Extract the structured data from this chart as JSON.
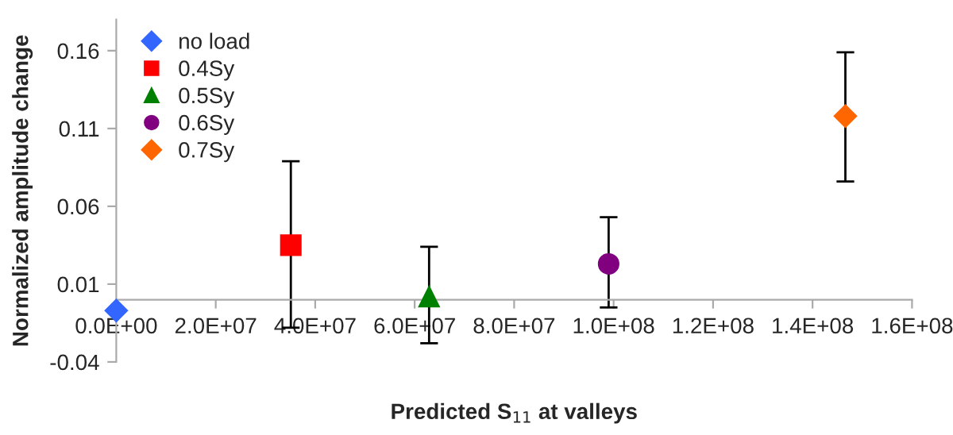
{
  "chart_data": {
    "type": "scatter",
    "xlabel": "Predicted S$_{11}$ at valleys",
    "ylabel": "Normalized amplitude change",
    "series": [
      {
        "name": "no load",
        "color": "#3366ff",
        "marker": "diamond",
        "x": [
          0
        ],
        "values": [
          -0.007
        ]
      },
      {
        "name": "0.4Sy",
        "color": "#ff0000",
        "marker": "square",
        "x": [
          35100000
        ],
        "values": [
          0.035
        ],
        "errors": [
          [
            -0.018,
            0.089
          ]
        ]
      },
      {
        "name": "0.5Sy",
        "color": "#008000",
        "marker": "triangle",
        "x": [
          62900000
        ],
        "values": [
          0.002
        ],
        "errors": [
          [
            -0.028,
            0.034
          ]
        ]
      },
      {
        "name": "0.6Sy",
        "color": "#800080",
        "marker": "circle",
        "x": [
          99000000
        ],
        "values": [
          0.023
        ],
        "errors": [
          [
            -0.005,
            0.053
          ]
        ]
      },
      {
        "name": "0.7Sy",
        "color": "#ff6600",
        "marker": "diamond",
        "x": [
          146600000
        ],
        "values": [
          0.118
        ],
        "errors": [
          [
            0.076,
            0.159
          ]
        ]
      }
    ],
    "xlim": [
      0,
      160000000
    ],
    "ylim": [
      -0.04,
      0.18
    ],
    "xticks": [
      {
        "value": 0,
        "label": "0.0E+00"
      },
      {
        "value": 20000000,
        "label": "2.0E+07"
      },
      {
        "value": 40000000,
        "label": "4.0E+07"
      },
      {
        "value": 60000000,
        "label": "6.0E+07"
      },
      {
        "value": 80000000,
        "label": "8.0E+07"
      },
      {
        "value": 100000000,
        "label": "1.0E+08"
      },
      {
        "value": 120000000,
        "label": "1.2E+08"
      },
      {
        "value": 140000000,
        "label": "1.4E+08"
      },
      {
        "value": 160000000,
        "label": "1.6E+08"
      }
    ],
    "yticks": [
      -0.04,
      0.01,
      0.06,
      0.11,
      0.16
    ],
    "grid": false,
    "legend": "top left"
  }
}
